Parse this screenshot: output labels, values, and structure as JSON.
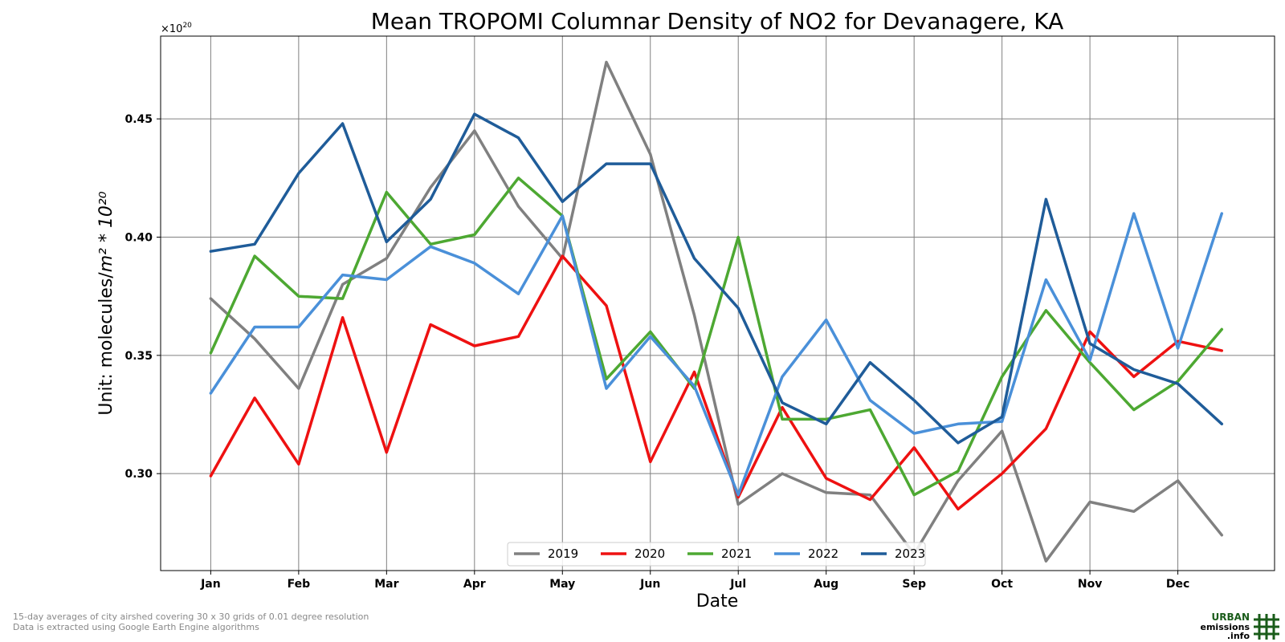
{
  "chart_data": {
    "type": "line",
    "title": "Mean TROPOMI Columnar Density of NO2 for Devanagere, KA",
    "xlabel": "Date",
    "ylabel_prefix": "Unit: molecules/",
    "ylabel_unit": "m² * 10²⁰",
    "offset_label_base": "×10",
    "offset_label_exp": "20",
    "ylim": [
      0.259,
      0.485
    ],
    "xlim": [
      0.43,
      13.1
    ],
    "grid": true,
    "legend_placement": "lower center",
    "yticks": [
      {
        "value": 0.3,
        "label": "0.30"
      },
      {
        "value": 0.35,
        "label": "0.35"
      },
      {
        "value": 0.4,
        "label": "0.40"
      },
      {
        "value": 0.45,
        "label": "0.45"
      }
    ],
    "xticks": [
      {
        "value": 1,
        "label": "Jan"
      },
      {
        "value": 2,
        "label": "Feb"
      },
      {
        "value": 3,
        "label": "Mar"
      },
      {
        "value": 4,
        "label": "Apr"
      },
      {
        "value": 5,
        "label": "May"
      },
      {
        "value": 6,
        "label": "Jun"
      },
      {
        "value": 7,
        "label": "Jul"
      },
      {
        "value": 8,
        "label": "Aug"
      },
      {
        "value": 9,
        "label": "Sep"
      },
      {
        "value": 10,
        "label": "Oct"
      },
      {
        "value": 11,
        "label": "Nov"
      },
      {
        "value": 12,
        "label": "Dec"
      }
    ],
    "x": [
      1,
      1.5,
      2,
      2.5,
      3,
      3.5,
      4,
      4.5,
      5,
      5.5,
      6,
      6.5,
      7,
      7.5,
      8,
      8.5,
      9,
      9.5,
      10,
      10.5,
      11,
      11.5,
      12,
      12.5
    ],
    "series": [
      {
        "name": "2019",
        "color": "#808080",
        "values": [
          0.374,
          0.357,
          0.336,
          0.38,
          0.391,
          0.421,
          0.445,
          0.413,
          0.391,
          0.474,
          0.435,
          0.367,
          0.287,
          0.3,
          0.292,
          0.291,
          0.266,
          0.297,
          0.318,
          0.263,
          0.288,
          0.284,
          0.297,
          0.274
        ]
      },
      {
        "name": "2020",
        "color": "#ee1111",
        "values": [
          0.299,
          0.332,
          0.304,
          0.366,
          0.309,
          0.363,
          0.354,
          0.358,
          0.392,
          0.371,
          0.305,
          0.343,
          0.29,
          0.328,
          0.298,
          0.289,
          0.311,
          0.285,
          0.3,
          0.319,
          0.36,
          0.341,
          0.356,
          0.352
        ]
      },
      {
        "name": "2021",
        "color": "#4da832",
        "values": [
          0.351,
          0.392,
          0.375,
          0.374,
          0.419,
          0.397,
          0.401,
          0.425,
          0.409,
          0.34,
          0.36,
          0.336,
          0.4,
          0.323,
          0.323,
          0.327,
          0.291,
          0.301,
          0.341,
          0.369,
          0.347,
          0.327,
          0.339,
          0.361
        ]
      },
      {
        "name": "2022",
        "color": "#4a90d9",
        "values": [
          0.334,
          0.362,
          0.362,
          0.384,
          0.382,
          0.396,
          0.389,
          0.376,
          0.409,
          0.336,
          0.358,
          0.337,
          0.291,
          0.341,
          0.365,
          0.331,
          0.317,
          0.321,
          0.322,
          0.382,
          0.348,
          0.41,
          0.353,
          0.41
        ]
      },
      {
        "name": "2023",
        "color": "#1f5c99",
        "values": [
          0.394,
          0.397,
          0.427,
          0.448,
          0.398,
          0.416,
          0.452,
          0.442,
          0.415,
          0.431,
          0.431,
          0.391,
          0.37,
          0.33,
          0.321,
          0.347,
          0.331,
          0.313,
          0.324,
          0.416,
          0.355,
          0.344,
          0.338,
          0.321
        ]
      }
    ]
  },
  "footnotes": {
    "line1": "15-day averages of city airshed covering 30 x 30 grids of 0.01 degree resolution",
    "line2": "Data is extracted using Google Earth Engine algorithms"
  },
  "logo": {
    "word1": "URBAN",
    "word2": "emissions",
    "word3": ".info",
    "color": "#1a5c1a"
  }
}
